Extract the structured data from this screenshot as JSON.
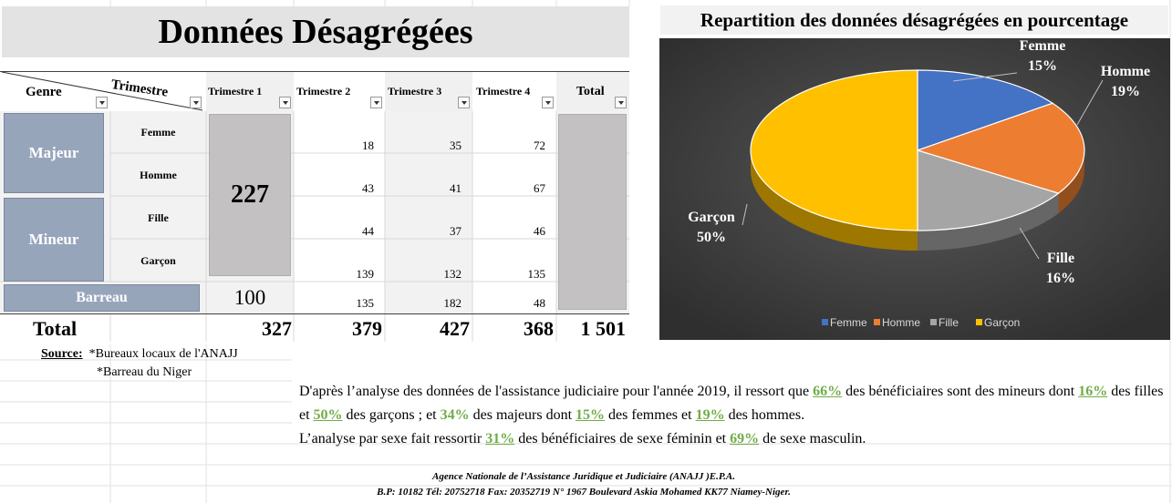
{
  "sheet": {
    "title": "Données Désagrégées"
  },
  "table": {
    "corner_row_label": "Genre",
    "corner_col_label": "Trimestre",
    "col_headers": [
      "Trimestre 1",
      "Trimestre 2",
      "Trimestre 3",
      "Trimestre 4",
      "Total"
    ],
    "groups": [
      {
        "label": "Majeur",
        "rows": [
          {
            "label": "Femme",
            "t2": "18",
            "t3": "35",
            "t4": "72"
          },
          {
            "label": "Homme",
            "t2": "43",
            "t3": "41",
            "t4": "67"
          }
        ]
      },
      {
        "label": "Mineur",
        "rows": [
          {
            "label": "Fille",
            "t2": "44",
            "t3": "37",
            "t4": "46"
          },
          {
            "label": "Garçon",
            "t2": "139",
            "t3": "132",
            "t4": "135"
          }
        ]
      }
    ],
    "t1_merged_value": "227",
    "barreau": {
      "label": "Barreau",
      "t1": "100",
      "t2": "135",
      "t3": "182",
      "t4": "48"
    },
    "totals": {
      "label": "Total",
      "t1": "327",
      "t2": "379",
      "t3": "427",
      "t4": "368",
      "grand": "1 501"
    }
  },
  "source": {
    "label": "Source:",
    "lines": [
      "*Bureaux locaux de l'ANAJJ",
      "*Barreau du Niger"
    ]
  },
  "chart": {
    "title": "Repartition des données désagrégées en pourcentage",
    "legend": [
      "Femme",
      "Homme",
      "Fille",
      "Garçon"
    ],
    "colors": {
      "Femme": "#4472c4",
      "Homme": "#ed7d31",
      "Fille": "#a5a5a5",
      "Garçon": "#ffc000"
    },
    "background": "#404040"
  },
  "chart_data": {
    "type": "pie",
    "title": "Repartition des données désagrégées en pourcentage",
    "categories": [
      "Femme",
      "Homme",
      "Fille",
      "Garçon"
    ],
    "values": [
      15,
      19,
      16,
      50
    ],
    "labels": [
      "15%",
      "19%",
      "16%",
      "50%"
    ],
    "legend_position": "bottom",
    "three_d": true
  },
  "analysis": {
    "s1": "D'après l’analyse des données de l'assistance judiciaire pour l'année 2019, il ressort que ",
    "p1": "66%",
    "s2": " des bénéficiaires sont des mineurs dont ",
    "p2": "16%",
    "s3": " des filles et ",
    "p3": "50%",
    "s4": " des garçons ; et ",
    "p4": "34%",
    "s5": " des majeurs dont ",
    "p5": "15%",
    "s6": " des femmes et ",
    "p6": "19%",
    "s7": " des hommes.",
    "s8": "L’analyse par sexe fait ressortir ",
    "p7": "31%",
    "s9": " des bénéficiaires de sexe féminin et ",
    "p8": "69%",
    "s10": " de sexe masculin."
  },
  "footer": {
    "line1": "Agence Nationale de l’Assistance Juridique et Judiciaire (ANAJJ )E.P.A.",
    "line2": "B.P: 10182 Tél: 20752718 Fax: 20352719 N° 1967 Boulevard Askia Mohamed KK77 Niamey-Niger."
  }
}
